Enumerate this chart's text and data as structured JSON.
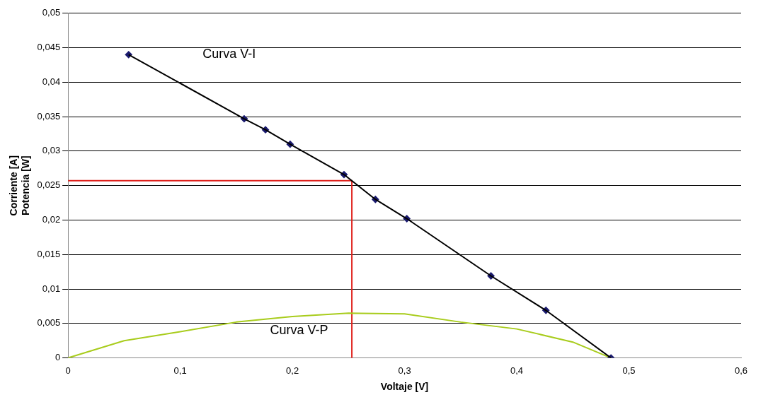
{
  "chart_data": {
    "type": "line",
    "xlabel": "Voltaje [V]",
    "ylabel": "Corriente [A]\nPotencia [W]",
    "xlim": [
      0,
      0.6
    ],
    "ylim": [
      0,
      0.05
    ],
    "xticks": [
      0,
      {
        "value": 0.1,
        "label": "0,1"
      },
      {
        "value": 0.2,
        "label": "0,2"
      },
      {
        "value": 0.3,
        "label": "0,3"
      },
      {
        "value": 0.4,
        "label": "0,4"
      },
      {
        "value": 0.5,
        "label": "0,5"
      },
      {
        "value": 0.6,
        "label": "0,6"
      }
    ],
    "yticks": [
      0,
      {
        "value": 0.005,
        "label": "0,005"
      },
      {
        "value": 0.01,
        "label": "0,01"
      },
      {
        "value": 0.015,
        "label": "0,015"
      },
      {
        "value": 0.02,
        "label": "0,02"
      },
      {
        "value": 0.025,
        "label": "0,025"
      },
      {
        "value": 0.03,
        "label": "0,03"
      },
      {
        "value": 0.035,
        "label": "0,035"
      },
      {
        "value": 0.04,
        "label": "0,04"
      },
      {
        "value": 0.045,
        "label": "0,045"
      },
      {
        "value": 0.05,
        "label": "0,05"
      }
    ],
    "grid": "y",
    "legend": false,
    "series": [
      {
        "color": "#000000",
        "marker": "none",
        "x": [
          0.054,
          0.157,
          0.176,
          0.198,
          0.246,
          0.274,
          0.302,
          0.377,
          0.426,
          0.484
        ],
        "values": [
          0.044,
          0.0347,
          0.0331,
          0.031,
          0.0266,
          0.023,
          0.0202,
          0.0119,
          0.0069,
          0
        ]
      },
      {
        "type": "scatter",
        "color": "#1a1a6e",
        "marker": "diamond",
        "x": [
          0.054,
          0.157,
          0.176,
          0.198,
          0.246,
          0.274,
          0.302,
          0.377,
          0.426,
          0.484
        ],
        "values": [
          0.044,
          0.0347,
          0.0331,
          0.031,
          0.0266,
          0.023,
          0.0202,
          0.0119,
          0.0069,
          0
        ]
      },
      {
        "color": "#a8cc1c",
        "marker": "none",
        "x": [
          0,
          0.05,
          0.1,
          0.15,
          0.2,
          0.25,
          0.3,
          0.35,
          0.4,
          0.45,
          0.484
        ],
        "values": [
          0,
          0.0025,
          0.0038,
          0.0052,
          0.006,
          0.0065,
          0.0064,
          0.0052,
          0.0042,
          0.0023,
          0
        ]
      },
      {
        "color": "#e0201b",
        "marker": "none",
        "x": [
          0,
          0.253,
          0.253
        ],
        "values": [
          0.0257,
          0.0257,
          0
        ]
      }
    ],
    "annotations": [
      "Curva V-I",
      "Curva V-P"
    ]
  }
}
